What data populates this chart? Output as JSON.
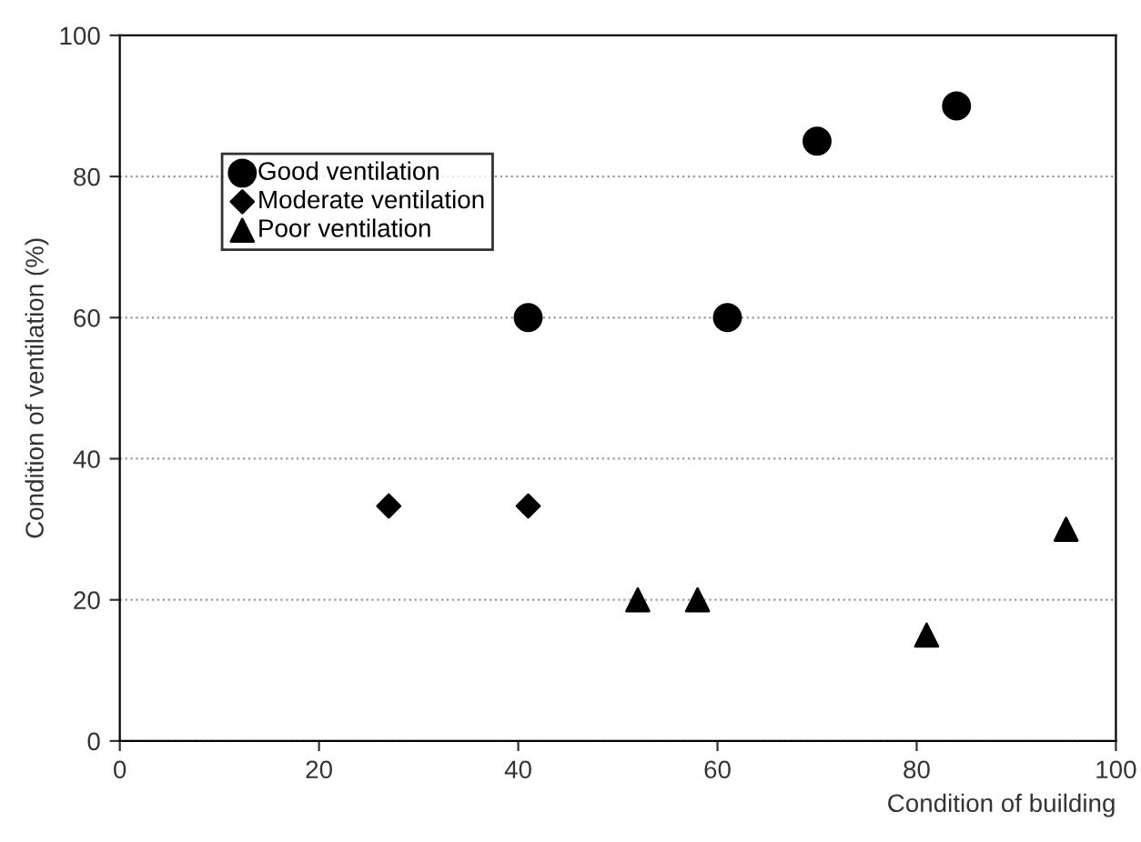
{
  "chart_data": {
    "type": "scatter",
    "xlabel": "Condition of building",
    "ylabel": "Condition of ventilation (%)",
    "xlim": [
      0,
      100
    ],
    "ylim": [
      0,
      100
    ],
    "xticks": [
      0,
      20,
      40,
      60,
      80,
      100
    ],
    "yticks": [
      0,
      20,
      40,
      60,
      80,
      100
    ],
    "grid": "y",
    "legend": "top left",
    "series": [
      {
        "name": "Good ventilation",
        "color": "#000000",
        "marker": "circle",
        "x": [
          41,
          61,
          70,
          84
        ],
        "values": [
          60,
          60,
          85,
          90
        ]
      },
      {
        "name": "Moderate ventilation",
        "color": "#000000",
        "marker": "diamond",
        "x": [
          27,
          41
        ],
        "values": [
          33.3,
          33.3
        ]
      },
      {
        "name": "Poor ventilation",
        "color": "#000000",
        "marker": "triangle",
        "x": [
          52,
          58,
          81,
          95
        ],
        "values": [
          20,
          20,
          15,
          30
        ]
      }
    ]
  }
}
